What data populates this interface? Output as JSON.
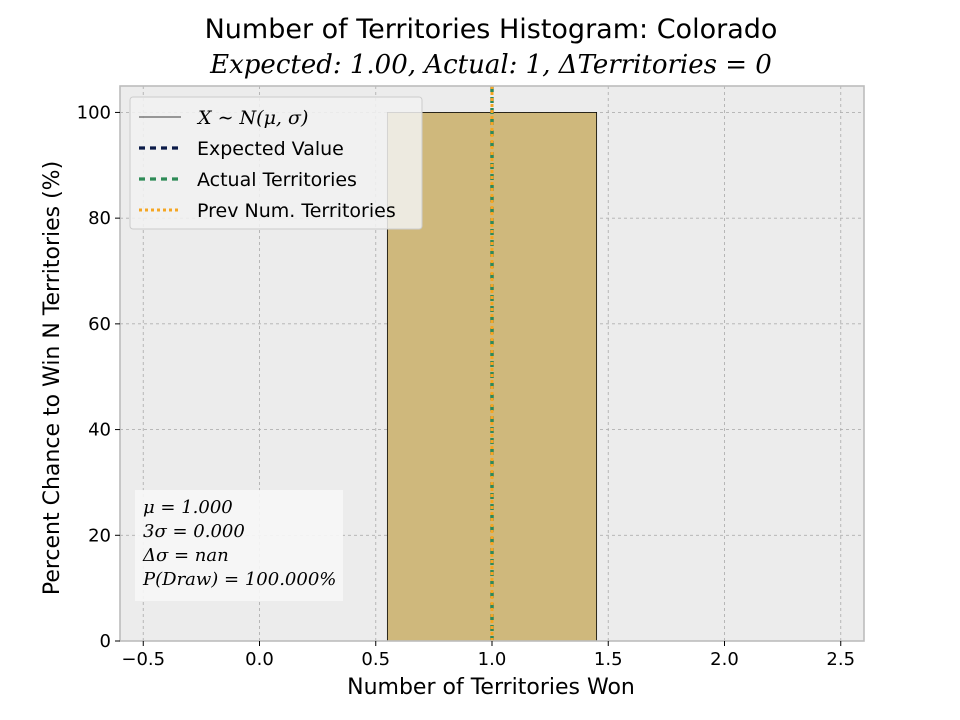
{
  "chart_data": {
    "type": "bar",
    "title": "Number of Territories Histogram: Colorado",
    "subtitle": "Expected: 1.00, Actual: 1, ΔTerritories = 0",
    "xlabel": "Number of Territories Won",
    "ylabel": "Percent Chance to Win N Territories (%)",
    "xlim": [
      -0.6,
      2.6
    ],
    "ylim": [
      0,
      105
    ],
    "xticks": [
      -0.5,
      0.0,
      0.5,
      1.0,
      1.5,
      2.0,
      2.5
    ],
    "xtick_labels": [
      "−0.5",
      "0.0",
      "0.5",
      "1.0",
      "1.5",
      "2.0",
      "2.5"
    ],
    "yticks": [
      0,
      20,
      40,
      60,
      80,
      100
    ],
    "ytick_labels": [
      "0",
      "20",
      "40",
      "60",
      "80",
      "100"
    ],
    "grid": true,
    "bars": [
      {
        "x_start": 0.55,
        "x_end": 1.45,
        "value": 100
      }
    ],
    "bar_color": "#cfb87c",
    "vlines": [
      {
        "name": "Expected Value",
        "x": 1.0,
        "color": "#0b1b48",
        "style": "dashed"
      },
      {
        "name": "Actual Territories",
        "x": 1.0,
        "color": "#2e8b57",
        "style": "dashed"
      },
      {
        "name": "Prev Num. Territories",
        "x": 1.0,
        "color": "#f5a623",
        "style": "dotted"
      }
    ],
    "legend": {
      "placement": "upper-left",
      "entries": [
        {
          "label": "X ∼ N(μ, σ)",
          "style": "solid",
          "color": "#000000",
          "math": true
        },
        {
          "label": "Expected Value",
          "style": "dashed",
          "color": "#0b1b48",
          "math": false
        },
        {
          "label": "Actual Territories",
          "style": "dashed",
          "color": "#2e8b57",
          "math": false
        },
        {
          "label": "Prev Num. Territories",
          "style": "dotted",
          "color": "#f5a623",
          "math": false
        }
      ]
    },
    "stats_box": {
      "placement": "lower-left",
      "lines": [
        "μ = 1.000",
        "3σ = 0.000",
        "Δσ = nan",
        "P(Draw) = 100.000%"
      ]
    }
  }
}
